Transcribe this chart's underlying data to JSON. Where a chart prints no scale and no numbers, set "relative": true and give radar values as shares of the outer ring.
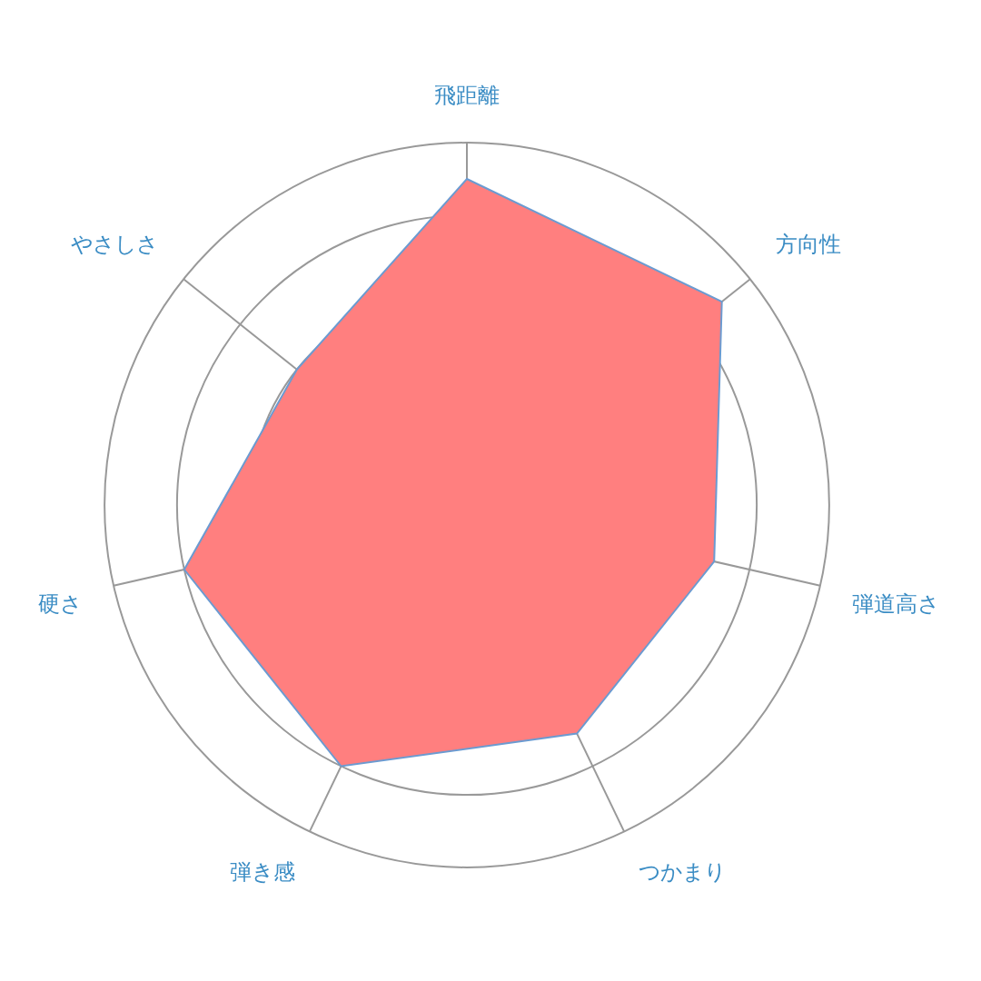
{
  "chart_data": {
    "type": "radar",
    "relative": true,
    "categories": [
      "飛距離",
      "方向性",
      "弾道高さ",
      "つかまり",
      "弾き感",
      "硬さ",
      "やさしさ"
    ],
    "series": [
      {
        "color": "#ff7f7f",
        "values": [
          0.9,
          0.9,
          0.7,
          0.7,
          0.8,
          0.8,
          0.6
        ]
      }
    ],
    "grid": true
  }
}
